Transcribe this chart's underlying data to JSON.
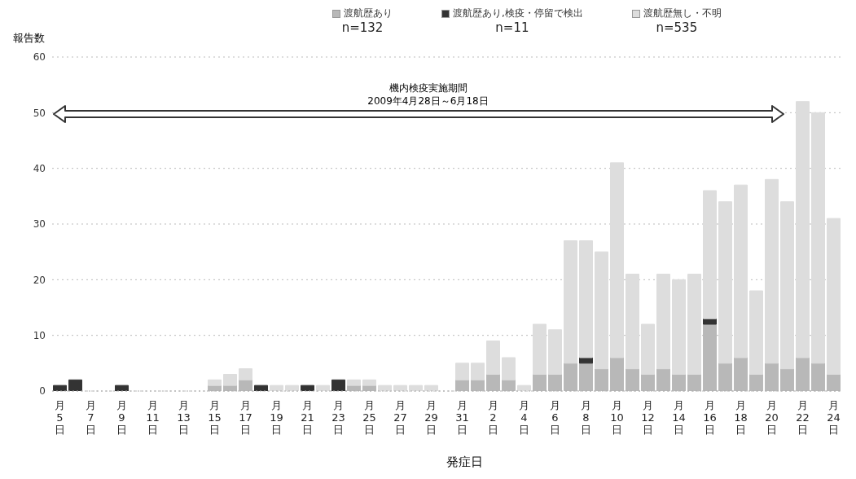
{
  "chart_data": {
    "type": "bar",
    "stacked": true,
    "ylabel": "報告数",
    "xlabel": "発症日",
    "categories": [
      "月5日",
      null,
      "月7日",
      null,
      "月9日",
      null,
      "月11日",
      null,
      "月13日",
      null,
      "月15日",
      null,
      "月17日",
      null,
      "月19日",
      null,
      "月21日",
      null,
      "月23日",
      null,
      "月25日",
      null,
      "月27日",
      null,
      "月29日",
      null,
      "月31日",
      null,
      "月2日",
      null,
      "月4日",
      null,
      "月6日",
      null,
      "月8日",
      null,
      "月10日",
      null,
      "月12日",
      null,
      "月14日",
      null,
      "月16日",
      null,
      "月18日",
      null,
      "月20日",
      null,
      "月22日",
      null,
      "月24日"
    ],
    "series": [
      {
        "name": "渡航歴あり",
        "color": "#b8b8b8",
        "values": [
          0,
          0,
          0,
          0,
          0,
          0,
          0,
          0,
          0,
          0,
          1,
          1,
          2,
          0,
          0,
          0,
          0,
          0,
          0,
          1,
          1,
          0,
          0,
          0,
          0,
          0,
          2,
          2,
          3,
          2,
          0,
          3,
          3,
          5,
          5,
          4,
          6,
          4,
          3,
          4,
          3,
          3,
          12,
          5,
          6,
          3,
          5,
          4,
          6,
          5,
          3
        ]
      },
      {
        "name": "渡航歴あり,検疫・停留で検出",
        "color": "#333333",
        "values": [
          1,
          2,
          0,
          0,
          1,
          0,
          0,
          0,
          0,
          0,
          0,
          0,
          0,
          1,
          0,
          0,
          1,
          0,
          2,
          0,
          0,
          0,
          0,
          0,
          0,
          0,
          0,
          0,
          0,
          0,
          0,
          0,
          0,
          0,
          1,
          0,
          0,
          0,
          0,
          0,
          0,
          0,
          1,
          0,
          0,
          0,
          0,
          0,
          0,
          0,
          0
        ]
      },
      {
        "name": "渡航歴無し・不明",
        "color": "#dddddd",
        "values": [
          0,
          0,
          0,
          0,
          0,
          0,
          0,
          0,
          0,
          0,
          1,
          2,
          2,
          0,
          1,
          1,
          0,
          1,
          0,
          1,
          1,
          1,
          1,
          1,
          1,
          0,
          3,
          3,
          6,
          4,
          1,
          9,
          8,
          22,
          21,
          21,
          35,
          17,
          9,
          17,
          17,
          18,
          23,
          29,
          31,
          15,
          33,
          30,
          46,
          45,
          28
        ]
      }
    ],
    "ylim": [
      0,
      60
    ],
    "yticks": [
      0,
      10,
      20,
      30,
      40,
      50,
      60
    ],
    "grid": "y",
    "legend": "top",
    "annotations": [
      "n=132",
      "n=11",
      "n=535",
      "機内検疫実施期間",
      "2009年4月28日～6月18日"
    ]
  }
}
